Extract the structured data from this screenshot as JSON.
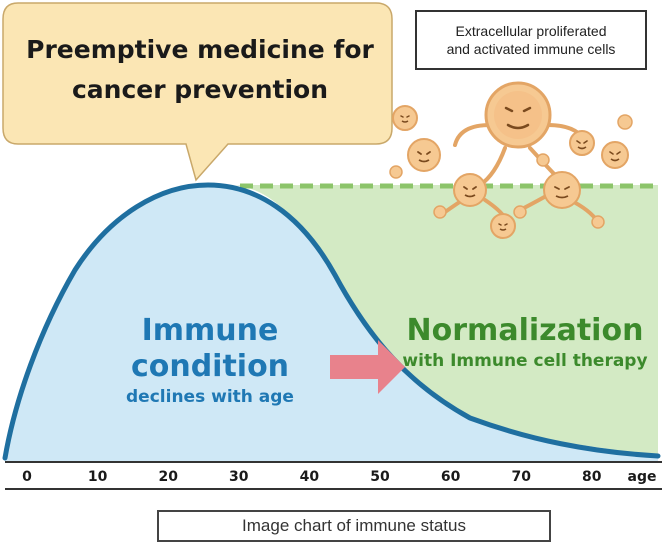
{
  "bubble": {
    "line1": "Preemptive medicine for",
    "line2": "cancer prevention"
  },
  "callout": {
    "line1": "Extracellular proliferated",
    "line2": "and activated immune cells"
  },
  "left_label": {
    "title": "Immune condition",
    "subtitle": "declines with age"
  },
  "right_label": {
    "title": "Normalization",
    "subtitle": "with Immune cell therapy"
  },
  "axis": {
    "unit_label": "age",
    "ticks": [
      "0",
      "10",
      "20",
      "30",
      "40",
      "50",
      "60",
      "70",
      "80"
    ]
  },
  "footer": {
    "caption": "Image chart of immune status"
  },
  "colors": {
    "curve": "#1f6fa0",
    "area_fill": "#cfe8f6",
    "normalization_fill": "#d3eac4",
    "normalization_line": "#8cc46a",
    "left_title": "#1f78b4",
    "right_title": "#3c8a2c",
    "arrow": "#e8828c",
    "bubble_fill": "#fbe6b4",
    "bubble_stroke": "#c9a86a",
    "cell_fill": "#f6c992",
    "cell_stroke": "#e3a565"
  }
}
